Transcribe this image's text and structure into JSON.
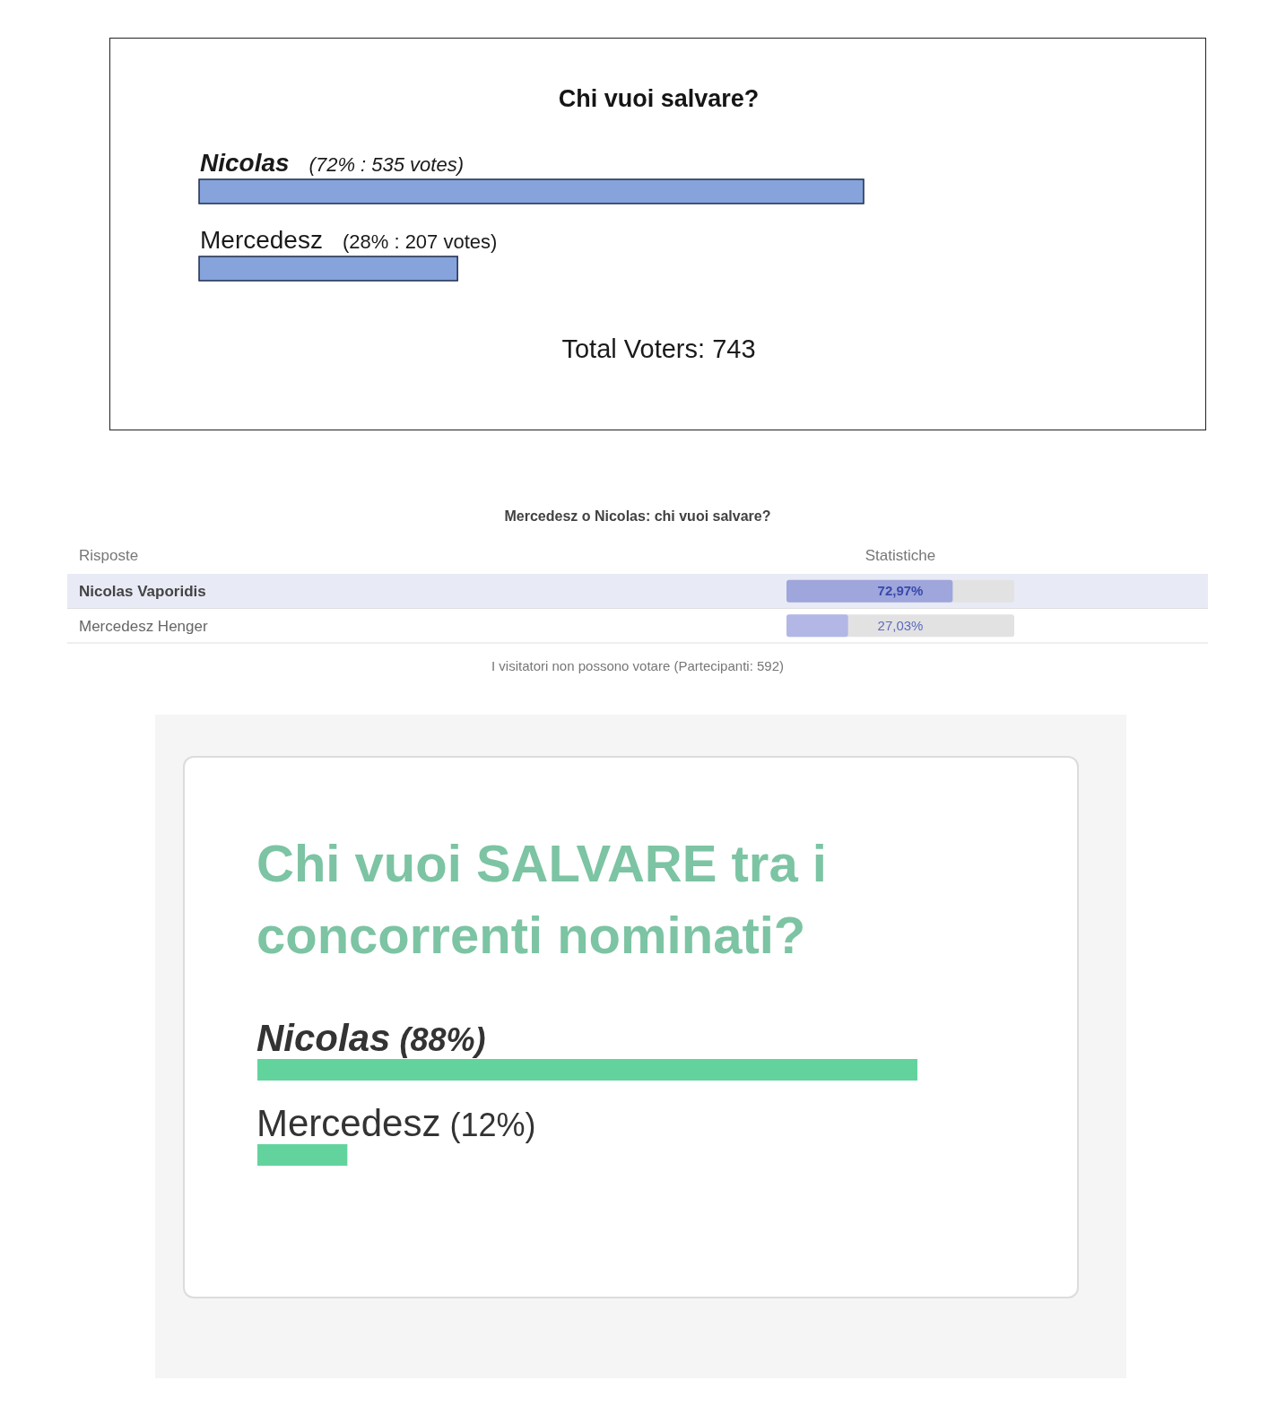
{
  "chart_data": [
    {
      "type": "bar",
      "orientation": "horizontal",
      "title": "Chi vuoi salvare?",
      "categories": [
        "Nicolas",
        "Mercedesz"
      ],
      "values": [
        72,
        28
      ],
      "value_labels": [
        "(72% : 535 votes)",
        "(28% : 207 votes)"
      ],
      "color": "#86a4db",
      "tick_labels": "y",
      "annotations": [
        "Total Voters: 743"
      ]
    },
    {
      "type": "bar",
      "orientation": "horizontal",
      "title": "Mercedesz o Nicolas: chi vuoi salvare?",
      "ylabel": "Risposte",
      "xlabel": "Statistiche",
      "categories": [
        "Nicolas Vaporidis",
        "Mercedesz Henger"
      ],
      "values": [
        72.97,
        27.03
      ],
      "value_labels": [
        "72,97%",
        "27,03%"
      ],
      "colors": [
        "#9ea6db",
        "#b2b7e6"
      ],
      "xlim": [
        0,
        100
      ],
      "tick_labels": "y",
      "grid": "y",
      "bands": [
        {
          "axis": "x",
          "from": 0,
          "to": 100,
          "color": "#e2e2e2"
        },
        {
          "axis": "y",
          "from": "Nicolas Vaporidis",
          "to": "Nicolas Vaporidis",
          "color": "#e8eaf6"
        }
      ],
      "annotations": [
        "I visitatori non possono votare (Partecipanti: 592)"
      ]
    },
    {
      "type": "bar",
      "orientation": "horizontal",
      "title": "Chi vuoi SALVARE tra i concorrenti nominati?",
      "categories": [
        "Nicolas",
        "Mercedesz"
      ],
      "values": [
        88,
        12
      ],
      "value_labels": [
        "(88%)",
        "(12%)"
      ],
      "color": "#63d39e",
      "tick_labels": "y"
    }
  ]
}
